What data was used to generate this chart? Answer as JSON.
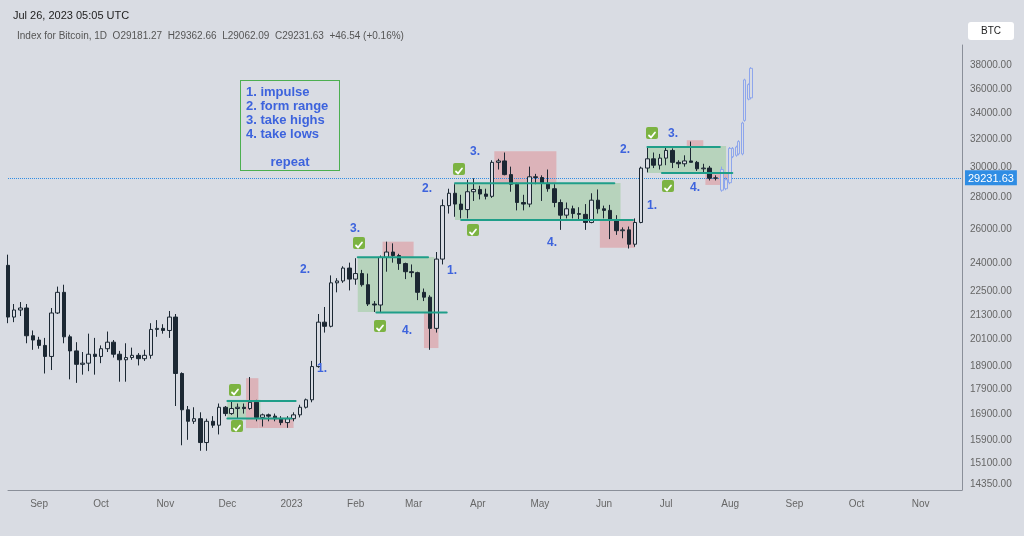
{
  "chart_data": {
    "type": "candlestick",
    "subtitle": "Jul 26, 2023 05:05 UTC",
    "title": "Index for Bitcoin, 1D  O29181.27  H29362.66  L29062.09  C29231.63  +46.54 (+0.16%)",
    "annotations": [
      "1. impulse\n2. form range\n3. take highs\n4. take lows\n\nrepeat",
      "BTC",
      "1.",
      "2.",
      "3.",
      "4.",
      "1.",
      "2.",
      "3.",
      "4.",
      "1.",
      "2.",
      "3.",
      "4."
    ],
    "log": "y",
    "marker": "none",
    "line_style": "solid",
    "xlim": [
      "2022-08-17",
      "2023-11-21"
    ],
    "xticks": [
      {
        "value": "2022-09-01",
        "label": "Sep"
      },
      {
        "value": "2022-10-01",
        "label": "Oct"
      },
      {
        "value": "2022-11-01",
        "label": "Nov"
      },
      {
        "value": "2022-12-01",
        "label": "Dec"
      },
      {
        "value": "2023-01-01",
        "label": "2023"
      },
      {
        "value": "2023-02-01",
        "label": "Feb"
      },
      {
        "value": "2023-03-01",
        "label": "Mar"
      },
      {
        "value": "2023-04-01",
        "label": "Apr"
      },
      {
        "value": "2023-05-01",
        "label": "May"
      },
      {
        "value": "2023-06-01",
        "label": "Jun"
      },
      {
        "value": "2023-07-01",
        "label": "Jul"
      },
      {
        "value": "2023-08-01",
        "label": "Aug"
      },
      {
        "value": "2023-09-01",
        "label": "Sep"
      },
      {
        "value": "2023-10-01",
        "label": "Oct"
      },
      {
        "value": "2023-11-01",
        "label": "Nov"
      }
    ],
    "ylim": [
      14150,
      39800
    ],
    "yticks": [
      {
        "value": 14350,
        "label": "14350.00"
      },
      {
        "value": 15100,
        "label": "15100.00"
      },
      {
        "value": 15900,
        "label": "15900.00"
      },
      {
        "value": 16900,
        "label": "16900.00"
      },
      {
        "value": 17900,
        "label": "17900.00"
      },
      {
        "value": 18900,
        "label": "18900.00"
      },
      {
        "value": 20100,
        "label": "20100.00"
      },
      {
        "value": 21300,
        "label": "21300.00"
      },
      {
        "value": 22500,
        "label": "22500.00"
      },
      {
        "value": 24000,
        "label": "24000.00"
      },
      {
        "value": 26000,
        "label": "26000.00"
      },
      {
        "value": 28000,
        "label": "28000.00"
      },
      {
        "value": 30000,
        "label": "30000.00"
      },
      {
        "value": 32000,
        "label": "32000.00"
      },
      {
        "value": 34000,
        "label": "34000.00"
      },
      {
        "value": 36000,
        "label": "36000.00"
      },
      {
        "value": 38000,
        "label": "38000.00"
      }
    ],
    "ref_lines": [
      {
        "axis": "y",
        "value": 29231.63,
        "label": "29231.63",
        "color": "#2f8de4",
        "line_style": "dotted"
      }
    ],
    "series": [
      {
        "type": "area",
        "color": "#b7d3bc",
        "x": [
          "2022-12-01",
          "2022-12-17"
        ],
        "values": [
          null,
          null
        ],
        "lower": [
          16700,
          16700
        ],
        "upper": [
          17450,
          17450
        ]
      },
      {
        "type": "area",
        "color": "#dcb3b9",
        "x": [
          "2022-12-10",
          "2022-12-16"
        ],
        "values": [
          null,
          null
        ],
        "lower": [
          16340,
          16340
        ],
        "upper": [
          18350,
          18350
        ]
      },
      {
        "type": "area",
        "color": "#dcb3b9",
        "x": [
          "2022-12-16",
          "2023-01-02"
        ],
        "values": [
          null,
          null
        ],
        "lower": [
          16340,
          16340
        ],
        "upper": [
          16750,
          16750
        ]
      },
      {
        "type": "area",
        "color": "#b7d3bc",
        "x": [
          "2023-02-02",
          "2023-03-11"
        ],
        "values": [
          null,
          null
        ],
        "lower": [
          21400,
          21400
        ],
        "upper": [
          24320,
          24320
        ]
      },
      {
        "type": "area",
        "color": "#dcb3b9",
        "x": [
          "2023-02-14",
          "2023-03-01"
        ],
        "values": [
          null,
          null
        ],
        "lower": [
          24320,
          24320
        ],
        "upper": [
          25200,
          25200
        ]
      },
      {
        "type": "area",
        "color": "#dcb3b9",
        "x": [
          "2023-03-06",
          "2023-03-13"
        ],
        "values": [
          null,
          null
        ],
        "lower": [
          19680,
          19680
        ],
        "upper": [
          21380,
          21380
        ]
      },
      {
        "type": "area",
        "color": "#b7d3bc",
        "x": [
          "2023-03-21",
          "2023-06-09"
        ],
        "values": [
          null,
          null
        ],
        "lower": [
          26500,
          26500
        ],
        "upper": [
          28880,
          28880
        ]
      },
      {
        "type": "area",
        "color": "#dcb3b9",
        "x": [
          "2023-04-09",
          "2023-05-09"
        ],
        "values": [
          null,
          null
        ],
        "lower": [
          28880,
          28880
        ],
        "upper": [
          31100,
          31100
        ]
      },
      {
        "type": "area",
        "color": "#dcb3b9",
        "x": [
          "2023-05-30",
          "2023-06-16"
        ],
        "values": [
          null,
          null
        ],
        "lower": [
          24850,
          24850
        ],
        "upper": [
          26500,
          26500
        ]
      },
      {
        "type": "area",
        "color": "#b7d3bc",
        "x": [
          "2023-06-22",
          "2023-07-30"
        ],
        "values": [
          null,
          null
        ],
        "lower": [
          29560,
          29560
        ],
        "upper": [
          31470,
          31470
        ]
      },
      {
        "type": "area",
        "color": "#dcb3b9",
        "x": [
          "2023-07-11",
          "2023-07-19"
        ],
        "values": [
          null,
          null
        ],
        "lower": [
          31470,
          31470
        ],
        "upper": [
          31900,
          31900
        ]
      },
      {
        "type": "area",
        "color": "#dcb3b9",
        "x": [
          "2023-07-20",
          "2023-07-31"
        ],
        "values": [
          null,
          null
        ],
        "lower": [
          28750,
          28750
        ],
        "upper": [
          29560,
          29560
        ]
      },
      {
        "type": "line",
        "color": "#1f9e89",
        "x": [
          "2022-12-01",
          "2023-01-03"
        ],
        "values": [
          17400,
          17400
        ]
      },
      {
        "type": "line",
        "color": "#1f9e89",
        "x": [
          "2022-12-01",
          "2023-01-01"
        ],
        "values": [
          16710,
          16710
        ]
      },
      {
        "type": "line",
        "color": "#1f9e89",
        "x": [
          "2023-02-02",
          "2023-03-08"
        ],
        "values": [
          24300,
          24300
        ]
      },
      {
        "type": "line",
        "color": "#1f9e89",
        "x": [
          "2023-02-11",
          "2023-03-17"
        ],
        "values": [
          21380,
          21380
        ]
      },
      {
        "type": "line",
        "color": "#1f9e89",
        "x": [
          "2023-03-21",
          "2023-06-06"
        ],
        "values": [
          28870,
          28870
        ]
      },
      {
        "type": "line",
        "color": "#1f9e89",
        "x": [
          "2023-03-24",
          "2023-06-15"
        ],
        "values": [
          26500,
          26500
        ]
      },
      {
        "type": "line",
        "color": "#1f9e89",
        "x": [
          "2023-06-22",
          "2023-07-27"
        ],
        "values": [
          31400,
          31400
        ]
      },
      {
        "type": "line",
        "color": "#1f9e89",
        "x": [
          "2023-06-29",
          "2023-08-02"
        ],
        "values": [
          29560,
          29560
        ]
      },
      {
        "color": "#1c2833",
        "x": [
          "2022-08-17",
          "2022-08-20",
          "2022-08-23",
          "2022-08-26",
          "2022-08-29",
          "2022-09-01",
          "2022-09-04",
          "2022-09-07",
          "2022-09-10",
          "2022-09-13",
          "2022-09-16",
          "2022-09-19",
          "2022-09-22",
          "2022-09-25",
          "2022-09-28",
          "2022-10-01",
          "2022-10-04",
          "2022-10-07",
          "2022-10-10",
          "2022-10-13",
          "2022-10-16",
          "2022-10-19",
          "2022-10-22",
          "2022-10-25",
          "2022-10-28",
          "2022-10-31",
          "2022-11-03",
          "2022-11-06",
          "2022-11-09",
          "2022-11-12",
          "2022-11-15",
          "2022-11-18",
          "2022-11-21",
          "2022-11-24",
          "2022-11-27",
          "2022-11-30",
          "2022-12-03",
          "2022-12-06",
          "2022-12-09",
          "2022-12-12",
          "2022-12-15",
          "2022-12-18",
          "2022-12-21",
          "2022-12-24",
          "2022-12-27",
          "2022-12-30",
          "2023-01-02",
          "2023-01-05",
          "2023-01-08",
          "2023-01-11",
          "2023-01-14",
          "2023-01-17",
          "2023-01-20",
          "2023-01-23",
          "2023-01-26",
          "2023-01-29",
          "2023-02-01",
          "2023-02-04",
          "2023-02-07",
          "2023-02-10",
          "2023-02-13",
          "2023-02-16",
          "2023-02-19",
          "2023-02-22",
          "2023-02-25",
          "2023-02-28",
          "2023-03-03",
          "2023-03-06",
          "2023-03-09",
          "2023-03-12",
          "2023-03-15",
          "2023-03-18",
          "2023-03-21",
          "2023-03-24",
          "2023-03-27",
          "2023-03-30",
          "2023-04-02",
          "2023-04-05",
          "2023-04-08",
          "2023-04-11",
          "2023-04-14",
          "2023-04-17",
          "2023-04-20",
          "2023-04-23",
          "2023-04-26",
          "2023-04-29",
          "2023-05-02",
          "2023-05-05",
          "2023-05-08",
          "2023-05-11",
          "2023-05-14",
          "2023-05-17",
          "2023-05-20",
          "2023-05-23",
          "2023-05-26",
          "2023-05-29",
          "2023-06-01",
          "2023-06-04",
          "2023-06-07",
          "2023-06-10",
          "2023-06-13",
          "2023-06-16",
          "2023-06-19",
          "2023-06-22",
          "2023-06-25",
          "2023-06-28",
          "2023-07-01",
          "2023-07-04",
          "2023-07-07",
          "2023-07-10",
          "2023-07-13",
          "2023-07-16",
          "2023-07-19",
          "2023-07-22",
          "2023-07-25"
        ],
        "ohlc": [
          [
            23850,
            24450,
            20850,
            21150
          ],
          [
            21150,
            21800,
            20900,
            21500
          ],
          [
            21500,
            21900,
            21200,
            21600
          ],
          [
            21600,
            21800,
            19900,
            20250
          ],
          [
            20250,
            20500,
            19600,
            20050
          ],
          [
            20050,
            20200,
            19650,
            19800
          ],
          [
            19800,
            20150,
            18550,
            19300
          ],
          [
            19300,
            21600,
            18700,
            21350
          ],
          [
            21350,
            22700,
            21300,
            22400
          ],
          [
            22400,
            22800,
            19900,
            20200
          ],
          [
            20200,
            20300,
            18300,
            19550
          ],
          [
            19550,
            19950,
            18150,
            18950
          ],
          [
            18950,
            19500,
            18500,
            19000
          ],
          [
            19000,
            20350,
            18650,
            19400
          ],
          [
            19400,
            20150,
            18500,
            19300
          ],
          [
            19300,
            19800,
            19000,
            19650
          ],
          [
            19650,
            20450,
            19500,
            19950
          ],
          [
            19950,
            20050,
            19250,
            19400
          ],
          [
            19400,
            19550,
            18200,
            19150
          ],
          [
            19150,
            19900,
            18200,
            19250
          ],
          [
            19250,
            19700,
            19150,
            19350
          ],
          [
            19350,
            19450,
            18900,
            19200
          ],
          [
            19200,
            19600,
            19100,
            19350
          ],
          [
            19350,
            20850,
            19200,
            20550
          ],
          [
            20550,
            21000,
            20200,
            20600
          ],
          [
            20600,
            20800,
            20350,
            20500
          ],
          [
            20500,
            21450,
            20150,
            21150
          ],
          [
            21150,
            21300,
            17200,
            18550
          ],
          [
            18550,
            18600,
            15700,
            17050
          ],
          [
            17050,
            17200,
            15900,
            16600
          ],
          [
            16600,
            17150,
            16500,
            16700
          ],
          [
            16700,
            16950,
            15500,
            15800
          ],
          [
            15800,
            16700,
            15500,
            16600
          ],
          [
            16600,
            16800,
            16350,
            16450
          ],
          [
            16450,
            17300,
            16100,
            17150
          ],
          [
            17150,
            17200,
            16800,
            16900
          ],
          [
            16900,
            17400,
            16850,
            17100
          ],
          [
            17100,
            17300,
            16700,
            17150
          ],
          [
            17150,
            17300,
            16900,
            17100
          ],
          [
            17100,
            18400,
            17050,
            17350
          ],
          [
            17350,
            17450,
            16600,
            16750
          ],
          [
            16750,
            16900,
            16400,
            16850
          ],
          [
            16850,
            16900,
            16600,
            16800
          ],
          [
            16800,
            16900,
            16600,
            16700
          ],
          [
            16700,
            16800,
            16450,
            16550
          ],
          [
            16550,
            16800,
            16350,
            16700
          ],
          [
            16700,
            16950,
            16600,
            16850
          ],
          [
            16850,
            17250,
            16750,
            17150
          ],
          [
            17150,
            17500,
            17100,
            17450
          ],
          [
            17450,
            19100,
            17350,
            18850
          ],
          [
            18850,
            21300,
            18800,
            20900
          ],
          [
            20900,
            21650,
            20400,
            20700
          ],
          [
            20700,
            23300,
            20650,
            22900
          ],
          [
            22900,
            23150,
            22400,
            23000
          ],
          [
            23000,
            23800,
            22900,
            23700
          ],
          [
            23700,
            24000,
            22500,
            23100
          ],
          [
            23100,
            24250,
            22800,
            23400
          ],
          [
            23400,
            23600,
            22700,
            22800
          ],
          [
            22800,
            23400,
            21700,
            21800
          ],
          [
            21800,
            21950,
            21400,
            21750
          ],
          [
            21750,
            24400,
            21400,
            24300
          ],
          [
            24300,
            25200,
            23500,
            24600
          ],
          [
            24600,
            25100,
            24000,
            24400
          ],
          [
            24400,
            24500,
            23600,
            23950
          ],
          [
            23950,
            24000,
            23100,
            23500
          ],
          [
            23500,
            23900,
            23200,
            23450
          ],
          [
            23450,
            23500,
            22000,
            22400
          ],
          [
            22400,
            22600,
            21950,
            22150
          ],
          [
            22150,
            22250,
            19600,
            20600
          ],
          [
            20600,
            24600,
            20400,
            24200
          ],
          [
            24200,
            27800,
            23900,
            27400
          ],
          [
            27400,
            28500,
            26900,
            28200
          ],
          [
            28200,
            28800,
            26700,
            27500
          ],
          [
            27500,
            28100,
            26600,
            27150
          ],
          [
            27150,
            29100,
            26600,
            28300
          ],
          [
            28300,
            29200,
            27700,
            28450
          ],
          [
            28450,
            28700,
            27800,
            28150
          ],
          [
            28150,
            28500,
            27800,
            28000
          ],
          [
            28000,
            30450,
            27900,
            30300
          ],
          [
            30300,
            30550,
            29800,
            30400
          ],
          [
            30400,
            31000,
            29400,
            29450
          ],
          [
            29450,
            30000,
            28300,
            28800
          ],
          [
            28800,
            28900,
            27100,
            27600
          ],
          [
            27600,
            28100,
            27100,
            27500
          ],
          [
            27500,
            30000,
            27300,
            29300
          ],
          [
            29300,
            29500,
            28800,
            29250
          ],
          [
            29250,
            29400,
            27700,
            28850
          ],
          [
            28850,
            29800,
            28300,
            28500
          ],
          [
            28500,
            28800,
            27300,
            27600
          ],
          [
            27600,
            27800,
            25900,
            26800
          ],
          [
            26800,
            27600,
            26600,
            27200
          ],
          [
            27200,
            27400,
            26600,
            26900
          ],
          [
            26900,
            27300,
            26550,
            26850
          ],
          [
            26850,
            27500,
            25900,
            26350
          ],
          [
            26350,
            28200,
            26300,
            27750
          ],
          [
            27750,
            28450,
            26900,
            27200
          ],
          [
            27200,
            27400,
            26600,
            27100
          ],
          [
            27100,
            27450,
            25350,
            26500
          ],
          [
            26500,
            26800,
            25600,
            25850
          ],
          [
            25850,
            26050,
            25400,
            25900
          ],
          [
            25900,
            26100,
            24800,
            25050
          ],
          [
            25050,
            26600,
            24900,
            26350
          ],
          [
            26350,
            30000,
            26300,
            29900
          ],
          [
            29900,
            31400,
            29600,
            30550
          ],
          [
            30550,
            31000,
            29900,
            30100
          ],
          [
            30100,
            30900,
            29800,
            30600
          ],
          [
            30600,
            31400,
            30100,
            31150
          ],
          [
            31150,
            31300,
            29900,
            30300
          ],
          [
            30300,
            30450,
            29900,
            30200
          ],
          [
            30200,
            30800,
            30000,
            30400
          ],
          [
            30400,
            31800,
            30300,
            30300
          ],
          [
            30300,
            30400,
            29700,
            29850
          ],
          [
            29850,
            30200,
            29600,
            29900
          ],
          [
            29900,
            30050,
            29050,
            29200
          ],
          [
            29200,
            29400,
            29050,
            29230
          ]
        ]
      },
      {
        "color": "#8ea6ec",
        "x": [
          "2023-07-28",
          "2023-07-30",
          "2023-08-01",
          "2023-08-02",
          "2023-08-04",
          "2023-08-05",
          "2023-08-07",
          "2023-08-08",
          "2023-08-10",
          "2023-08-11"
        ],
        "ohlc": [
          [
            28400,
            30000,
            28300,
            29800
          ],
          [
            28500,
            29300,
            28400,
            29100
          ],
          [
            28900,
            31400,
            28800,
            31300
          ],
          [
            30700,
            31400,
            30600,
            31300
          ],
          [
            30800,
            31500,
            30700,
            31400
          ],
          [
            30900,
            31900,
            30800,
            31800
          ],
          [
            30900,
            33300,
            30800,
            33200
          ],
          [
            33400,
            36800,
            33300,
            36700
          ],
          [
            35100,
            36400,
            35000,
            36300
          ],
          [
            35200,
            37800,
            35100,
            37700
          ]
        ]
      }
    ]
  }
}
